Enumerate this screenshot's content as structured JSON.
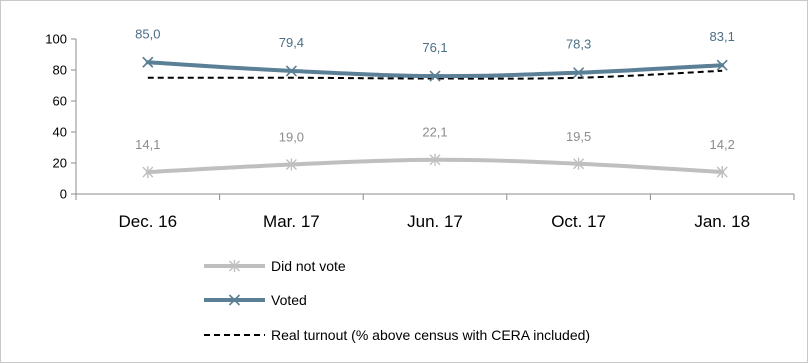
{
  "colors": {
    "voted": "#5b7f95",
    "did_not_vote": "#bfbfbf",
    "real_turnout": "#000000",
    "axis": "#8c8c8c",
    "voted_label": "#4a6f86",
    "did_not_vote_label": "#8c8c8c"
  },
  "chart_data": {
    "type": "line",
    "categories": [
      "Dec. 16",
      "Mar. 17",
      "Jun. 17",
      "Oct. 17",
      "Jan. 18"
    ],
    "ylim": [
      0,
      100
    ],
    "yticks": [
      "0",
      "20",
      "40",
      "60",
      "80",
      "100"
    ],
    "grid": false,
    "legend_position": "bottom-left",
    "series": [
      {
        "key": "did_not_vote",
        "name": "Did not vote",
        "values": [
          14.1,
          19.0,
          22.1,
          19.5,
          14.2
        ],
        "labels": [
          "14,1",
          "19,0",
          "22,1",
          "19,5",
          "14,2"
        ],
        "marker": "asterisk",
        "dashed": false
      },
      {
        "key": "voted",
        "name": "Voted",
        "values": [
          85.0,
          79.4,
          76.1,
          78.3,
          83.1
        ],
        "labels": [
          "85,0",
          "79,4",
          "76,1",
          "78,3",
          "83,1"
        ],
        "marker": "x",
        "dashed": false
      },
      {
        "key": "real_turnout",
        "name": "Real turnout (% above census with CERA included)",
        "values": [
          75.0,
          75.0,
          74.5,
          75.0,
          79.5
        ],
        "marker": "none",
        "dashed": true
      }
    ]
  }
}
